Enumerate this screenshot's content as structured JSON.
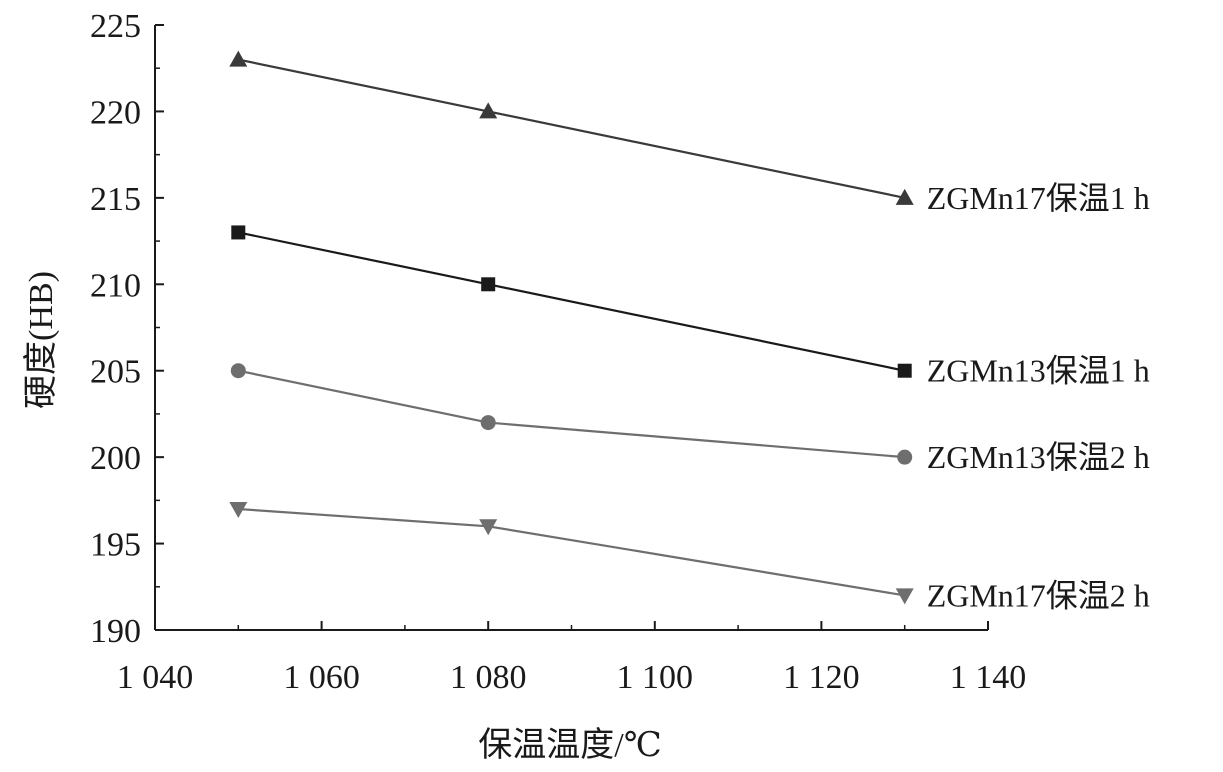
{
  "chart_data": {
    "type": "line",
    "title": "",
    "xlabel": "保温温度/℃",
    "ylabel": "硬度(HB)",
    "xlim": [
      1040,
      1140
    ],
    "ylim": [
      190,
      225
    ],
    "x_ticks": [
      1040,
      1060,
      1080,
      1100,
      1120,
      1140
    ],
    "x_tick_labels": [
      "1 040",
      "1 060",
      "1 080",
      "1 100",
      "1 120",
      "1 140"
    ],
    "y_ticks": [
      190,
      195,
      200,
      205,
      210,
      215,
      220,
      225
    ],
    "y_tick_labels": [
      "190",
      "195",
      "200",
      "205",
      "210",
      "215",
      "220",
      "225"
    ],
    "grid": false,
    "legend": "inline-right",
    "x": [
      1050,
      1080,
      1130
    ],
    "series": [
      {
        "name": "ZGMn17保温1 h",
        "values": [
          223,
          220,
          215
        ],
        "marker": "triangle-up",
        "color": "#3a3a3a"
      },
      {
        "name": "ZGMn13保温1 h",
        "values": [
          213,
          210,
          205
        ],
        "marker": "square",
        "color": "#1a1a1a"
      },
      {
        "name": "ZGMn13保温2 h",
        "values": [
          205,
          202,
          200
        ],
        "marker": "circle",
        "color": "#6e6e6e"
      },
      {
        "name": "ZGMn17保温2 h",
        "values": [
          197,
          196,
          192
        ],
        "marker": "triangle-down",
        "color": "#6e6e6e"
      }
    ]
  }
}
